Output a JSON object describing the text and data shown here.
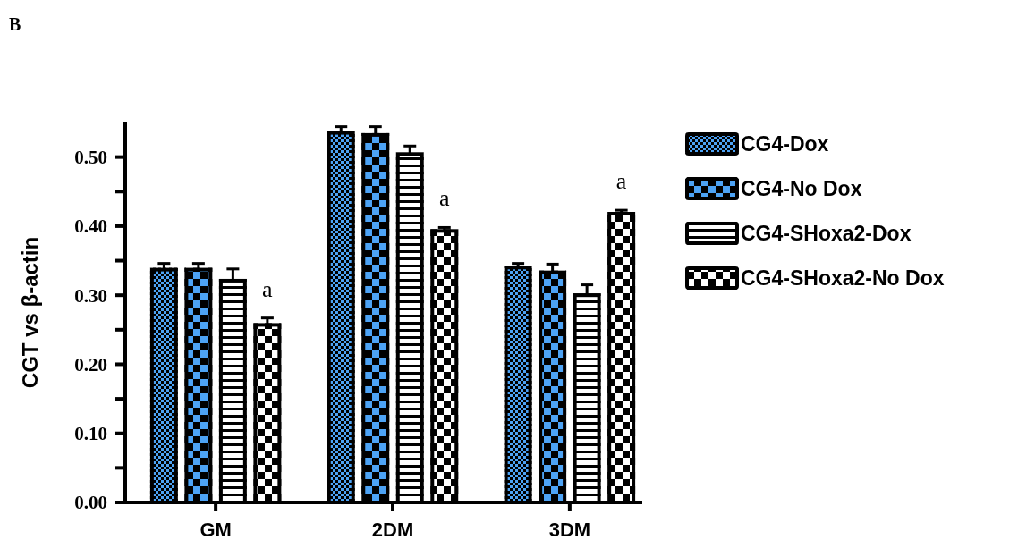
{
  "chart_data": {
    "type": "bar",
    "ylabel": "CGT vs β-actin",
    "categories": [
      "GM",
      "2DM",
      "3DM"
    ],
    "series": [
      {
        "name": "CG4-Dox",
        "color": "#4da3f5",
        "values": [
          0.337,
          0.535,
          0.34
        ],
        "errors": [
          [
            0.337,
            0.346
          ],
          [
            0.535,
            0.544
          ],
          [
            0.34,
            0.346
          ]
        ]
      },
      {
        "name": "CG4-No Dox",
        "color": "#4da3f5",
        "values": [
          0.337,
          0.532,
          0.333
        ],
        "errors": [
          [
            0.337,
            0.346
          ],
          [
            0.532,
            0.544
          ],
          [
            0.333,
            0.345
          ]
        ]
      },
      {
        "name": "CG4-SHoxa2-Dox",
        "color": "#ffffff",
        "values": [
          0.321,
          0.504,
          0.3
        ],
        "errors": [
          [
            0.321,
            0.338
          ],
          [
            0.504,
            0.516
          ],
          [
            0.3,
            0.315
          ]
        ]
      },
      {
        "name": "CG4-SHoxa2-No Dox",
        "color": "#ffffff",
        "values": [
          0.257,
          0.393,
          0.418
        ],
        "errors": [
          [
            0.257,
            0.267
          ],
          [
            0.393,
            0.398
          ],
          [
            0.418,
            0.423
          ]
        ]
      }
    ],
    "ylim": [
      0,
      0.55
    ],
    "yticks": [
      {
        "value": 0,
        "label": "0.00"
      },
      {
        "value": 0.05,
        "label": null
      },
      {
        "value": 0.1,
        "label": "0.10"
      },
      {
        "value": 0.15,
        "label": null
      },
      {
        "value": 0.2,
        "label": "0.20"
      },
      {
        "value": 0.25,
        "label": null
      },
      {
        "value": 0.3,
        "label": "0.30"
      },
      {
        "value": 0.35,
        "label": null
      },
      {
        "value": 0.4,
        "label": "0.40"
      },
      {
        "value": 0.45,
        "label": null
      },
      {
        "value": 0.5,
        "label": "0.50"
      }
    ],
    "legend": "right",
    "grid": false,
    "annotations": [
      "B",
      "a",
      "a",
      "a"
    ]
  }
}
